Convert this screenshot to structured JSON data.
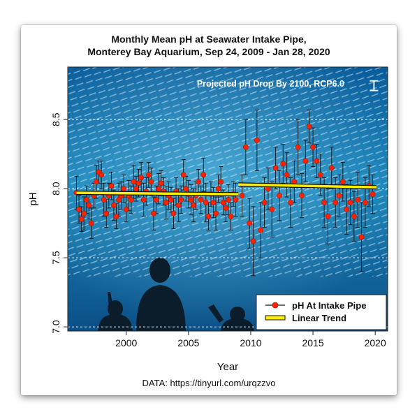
{
  "chart_data": {
    "type": "scatter",
    "title_line1": "Monthly Mean pH at Seawater Intake Pipe,",
    "title_line2": "Monterey Bay Aquarium, Sep 24, 2009 - Jan 28, 2020",
    "xlabel": "Year",
    "ylabel": "pH",
    "caption": "DATA: https://tinyurl.com/urqzzvo",
    "annotation": "Projected pH Drop By 2100, RCP6.0",
    "xlim": [
      1995.3,
      2021.0
    ],
    "ylim": [
      6.97,
      8.88
    ],
    "xticks": [
      {
        "value": 2000,
        "label": "2000"
      },
      {
        "value": 2005,
        "label": "2005"
      },
      {
        "value": 2010,
        "label": "2010"
      },
      {
        "value": 2015,
        "label": "2015"
      },
      {
        "value": 2020,
        "label": "2020"
      }
    ],
    "yticks": [
      {
        "value": 7.0,
        "label": "7.0"
      },
      {
        "value": 7.5,
        "label": "7.5"
      },
      {
        "value": 8.0,
        "label": "8.0"
      },
      {
        "value": 8.5,
        "label": "8.5"
      }
    ],
    "grid": "horizontal dashed",
    "legend_position": "bottom-right",
    "legend": [
      {
        "label": "pH At Intake Pipe"
      },
      {
        "label": "Linear Trend"
      }
    ],
    "colors": {
      "points": "#ff2200",
      "trend": "#ffee00",
      "errorbar": "#111111",
      "grid": "#ffffff"
    },
    "series": [
      {
        "x": [
          1996.0,
          1996.2,
          1996.4,
          1996.6,
          1996.8,
          1997.0,
          1997.2,
          1997.4,
          1997.6,
          1997.8,
          1998.0,
          1998.2,
          1998.4,
          1998.6,
          1998.8,
          1999.0,
          1999.2,
          1999.4,
          1999.6,
          1999.8,
          2000.0,
          2000.2,
          2000.4,
          2000.6,
          2000.8,
          2001.0,
          2001.2,
          2001.4,
          2001.6,
          2001.8,
          2002.0,
          2002.2,
          2002.4,
          2002.6,
          2002.8,
          2003.0,
          2003.2,
          2003.4,
          2003.6,
          2003.8,
          2004.0,
          2004.2,
          2004.4,
          2004.6,
          2004.8,
          2005.0,
          2005.2,
          2005.4,
          2005.6,
          2005.8,
          2006.0,
          2006.2,
          2006.4,
          2006.6,
          2006.8,
          2007.0,
          2007.2,
          2007.4,
          2007.6,
          2007.8,
          2008.0,
          2008.2,
          2008.4,
          2008.6,
          2008.8
        ],
        "y": [
          7.97,
          7.85,
          7.78,
          7.82,
          7.92,
          7.88,
          7.75,
          7.95,
          8.05,
          8.12,
          8.1,
          7.92,
          7.82,
          7.95,
          8.02,
          7.88,
          7.8,
          7.92,
          7.95,
          8.0,
          7.85,
          7.95,
          7.92,
          8.05,
          8.0,
          8.04,
          8.08,
          7.92,
          7.98,
          8.1,
          8.05,
          7.82,
          7.92,
          8.0,
          8.04,
          7.98,
          7.9,
          7.95,
          7.92,
          7.82,
          7.98,
          7.88,
          7.92,
          8.1,
          8.0,
          7.96,
          7.92,
          7.88,
          7.95,
          8.05,
          7.92,
          8.1,
          7.9,
          7.8,
          7.96,
          7.9,
          7.82,
          8.0,
          8.05,
          7.9,
          7.86,
          7.92,
          7.8,
          7.96,
          7.92
        ],
        "err": [
          0.12,
          0.1,
          0.09,
          0.12,
          0.1,
          0.1,
          0.11,
          0.09,
          0.12,
          0.08,
          0.1,
          0.12,
          0.1,
          0.09,
          0.1,
          0.11,
          0.09,
          0.12,
          0.1,
          0.1,
          0.09,
          0.11,
          0.1,
          0.12,
          0.09,
          0.1,
          0.11,
          0.12,
          0.1,
          0.09,
          0.1,
          0.12,
          0.1,
          0.11,
          0.09,
          0.1,
          0.12,
          0.1,
          0.09,
          0.11,
          0.1,
          0.12,
          0.1,
          0.11,
          0.09,
          0.1,
          0.11,
          0.12,
          0.1,
          0.09,
          0.1,
          0.12,
          0.14,
          0.1,
          0.09,
          0.11,
          0.12,
          0.1,
          0.11,
          0.09,
          0.1,
          0.11,
          0.1,
          0.09,
          0.12
        ]
      },
      {
        "x": [
          2009.3,
          2009.6,
          2009.9,
          2010.2,
          2010.5,
          2010.8,
          2011.1,
          2011.4,
          2011.7,
          2012.0,
          2012.3,
          2012.6,
          2012.9,
          2013.2,
          2013.5,
          2013.8,
          2014.1,
          2014.4,
          2014.7,
          2015.0,
          2015.3,
          2015.6,
          2015.9,
          2016.2,
          2016.5,
          2016.8,
          2017.1,
          2017.4,
          2017.7,
          2018.0,
          2018.3,
          2018.6,
          2018.9,
          2019.2,
          2019.5,
          2019.8
        ],
        "y": [
          7.95,
          8.3,
          7.75,
          7.62,
          8.35,
          7.7,
          7.9,
          8.0,
          7.85,
          8.15,
          7.95,
          8.18,
          8.1,
          7.9,
          8.05,
          8.3,
          7.95,
          8.2,
          8.45,
          8.3,
          8.2,
          8.1,
          7.9,
          7.8,
          8.15,
          7.9,
          7.95,
          8.05,
          7.85,
          7.9,
          7.8,
          7.92,
          7.65,
          7.9,
          8.02,
          7.96
        ],
        "err": [
          0.15,
          0.2,
          0.18,
          0.25,
          0.22,
          0.2,
          0.18,
          0.15,
          0.2,
          0.15,
          0.18,
          0.14,
          0.16,
          0.18,
          0.15,
          0.2,
          0.16,
          0.15,
          0.12,
          0.14,
          0.12,
          0.15,
          0.18,
          0.2,
          0.15,
          0.18,
          0.15,
          0.14,
          0.18,
          0.16,
          0.18,
          0.2,
          0.25,
          0.18,
          0.15,
          0.14
        ]
      }
    ],
    "trend": [
      {
        "x": [
          1996.0,
          2009.0
        ],
        "y": [
          7.97,
          7.96
        ]
      },
      {
        "x": [
          2009.0,
          2020.1
        ],
        "y": [
          8.03,
          8.01
        ]
      }
    ],
    "projection_bar": {
      "x": 2019.9,
      "y_top": 8.78,
      "y_bottom": 8.71
    }
  }
}
